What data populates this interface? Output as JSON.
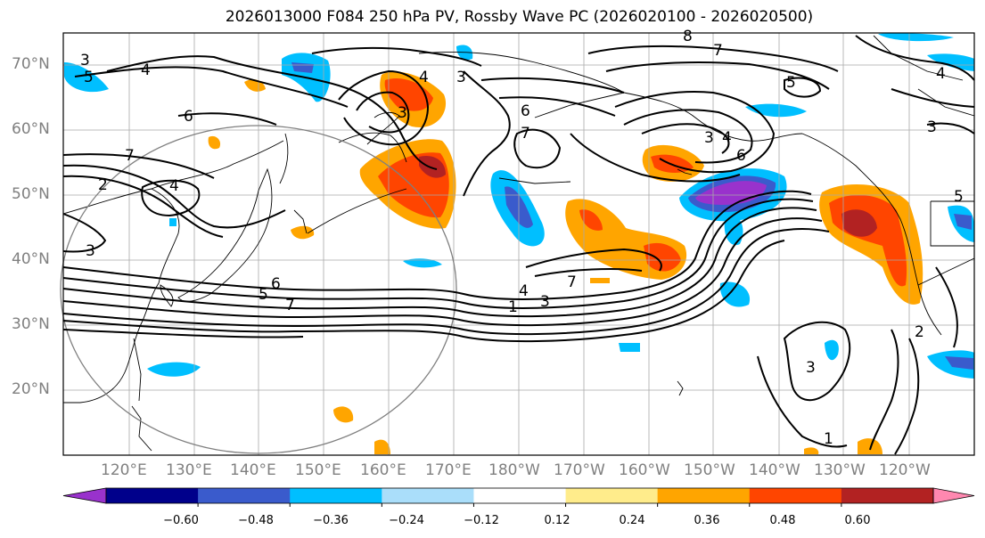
{
  "title": "2026013000 F084 250 hPa PV, Rossby Wave PC (2026020100 - 2026020500)",
  "lat_labels": [
    "70°N",
    "60°N",
    "50°N",
    "40°N",
    "30°N",
    "20°N"
  ],
  "lon_labels": [
    "120°E",
    "130°E",
    "140°E",
    "150°E",
    "160°E",
    "170°E",
    "180°W",
    "170°W",
    "160°W",
    "150°W",
    "140°W",
    "130°W",
    "120°W"
  ],
  "map": {
    "region": "North Pacific",
    "lon_range": [
      "110°E",
      "115°W"
    ],
    "lat_range": [
      "10°N",
      "75°N"
    ],
    "pv_contour_labels": [
      "1",
      "2",
      "3",
      "4",
      "5",
      "6",
      "7",
      "8"
    ],
    "colors": {
      "coast": "#000000",
      "grid": "#a9a9a9",
      "pv_contour": "#000000",
      "range_circle": "#7f7f7f"
    }
  },
  "colorbar": {
    "tick_labels": [
      "−0.60",
      "−0.48",
      "−0.36",
      "−0.24",
      "−0.12",
      "0.12",
      "0.24",
      "0.36",
      "0.48",
      "0.60"
    ],
    "colors": [
      "#9932cc",
      "#00008b",
      "#3a5bcc",
      "#00bfff",
      "#aadefa",
      "#ffffff",
      "#ffec8b",
      "#ffa500",
      "#ff4500",
      "#b22222",
      "#ff88b0"
    ]
  }
}
